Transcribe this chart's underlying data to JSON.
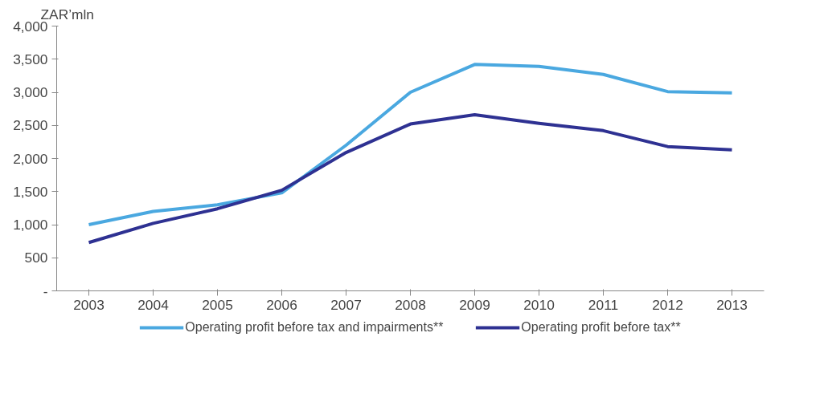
{
  "chart_data": {
    "type": "line",
    "ylabel": "ZAR’mln",
    "categories": [
      "2003",
      "2004",
      "2005",
      "2006",
      "2007",
      "2008",
      "2009",
      "2010",
      "2011",
      "2012",
      "2013"
    ],
    "series": [
      {
        "name": "Operating profit before tax and impairments**",
        "color": "#4aa8e0",
        "values": [
          1000,
          1200,
          1300,
          1480,
          2200,
          3000,
          3420,
          3390,
          3270,
          3010,
          2990
        ]
      },
      {
        "name": "Operating profit before tax**",
        "color": "#2e3192",
        "values": [
          730,
          1020,
          1240,
          1520,
          2090,
          2520,
          2660,
          2530,
          2420,
          2180,
          2130
        ]
      }
    ],
    "ylim": [
      0,
      4000
    ],
    "yticks": [
      {
        "value": 0,
        "label": "-"
      },
      {
        "value": 500,
        "label": "500"
      },
      {
        "value": 1000,
        "label": "1,000"
      },
      {
        "value": 1500,
        "label": "1,500"
      },
      {
        "value": 2000,
        "label": "2,000"
      },
      {
        "value": 2500,
        "label": "2,500"
      },
      {
        "value": 3000,
        "label": "3,000"
      },
      {
        "value": 3500,
        "label": "3,500"
      },
      {
        "value": 4000,
        "label": "4,000"
      }
    ],
    "grid": false,
    "legend": "bottom",
    "line_style": "solid",
    "marker": "none"
  }
}
